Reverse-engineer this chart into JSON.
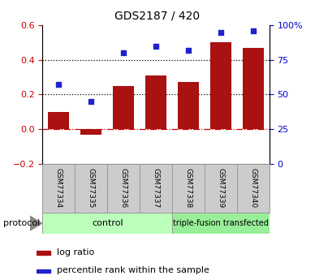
{
  "title": "GDS2187 / 420",
  "samples": [
    "GSM77334",
    "GSM77335",
    "GSM77336",
    "GSM77337",
    "GSM77338",
    "GSM77339",
    "GSM77340"
  ],
  "log_ratio": [
    0.1,
    -0.03,
    0.25,
    0.31,
    0.27,
    0.5,
    0.47
  ],
  "percentile_rank_pct": [
    57,
    45,
    80,
    85,
    82,
    95,
    96
  ],
  "bar_color": "#aa1111",
  "dot_color": "#2222cc",
  "left_ylim": [
    -0.2,
    0.6
  ],
  "left_yticks": [
    -0.2,
    0.0,
    0.2,
    0.4,
    0.6
  ],
  "right_ylim": [
    0,
    100
  ],
  "right_yticks": [
    0,
    25,
    50,
    75,
    100
  ],
  "right_yticklabels": [
    "0",
    "25",
    "50",
    "75",
    "100%"
  ],
  "hline_y": 0.0,
  "dotted_hlines": [
    0.2,
    0.4
  ],
  "control_label": "control",
  "treatment_label": "triple-fusion transfected",
  "protocol_label": "protocol",
  "control_color": "#bbffbb",
  "treatment_color": "#99ee99",
  "sample_box_color": "#cccccc",
  "sample_box_edge": "#999999",
  "legend_bar_label": "log ratio",
  "legend_dot_label": "percentile rank within the sample",
  "bar_width": 0.65,
  "left_axis_color": "#cc0000",
  "right_axis_color": "#0000cc"
}
